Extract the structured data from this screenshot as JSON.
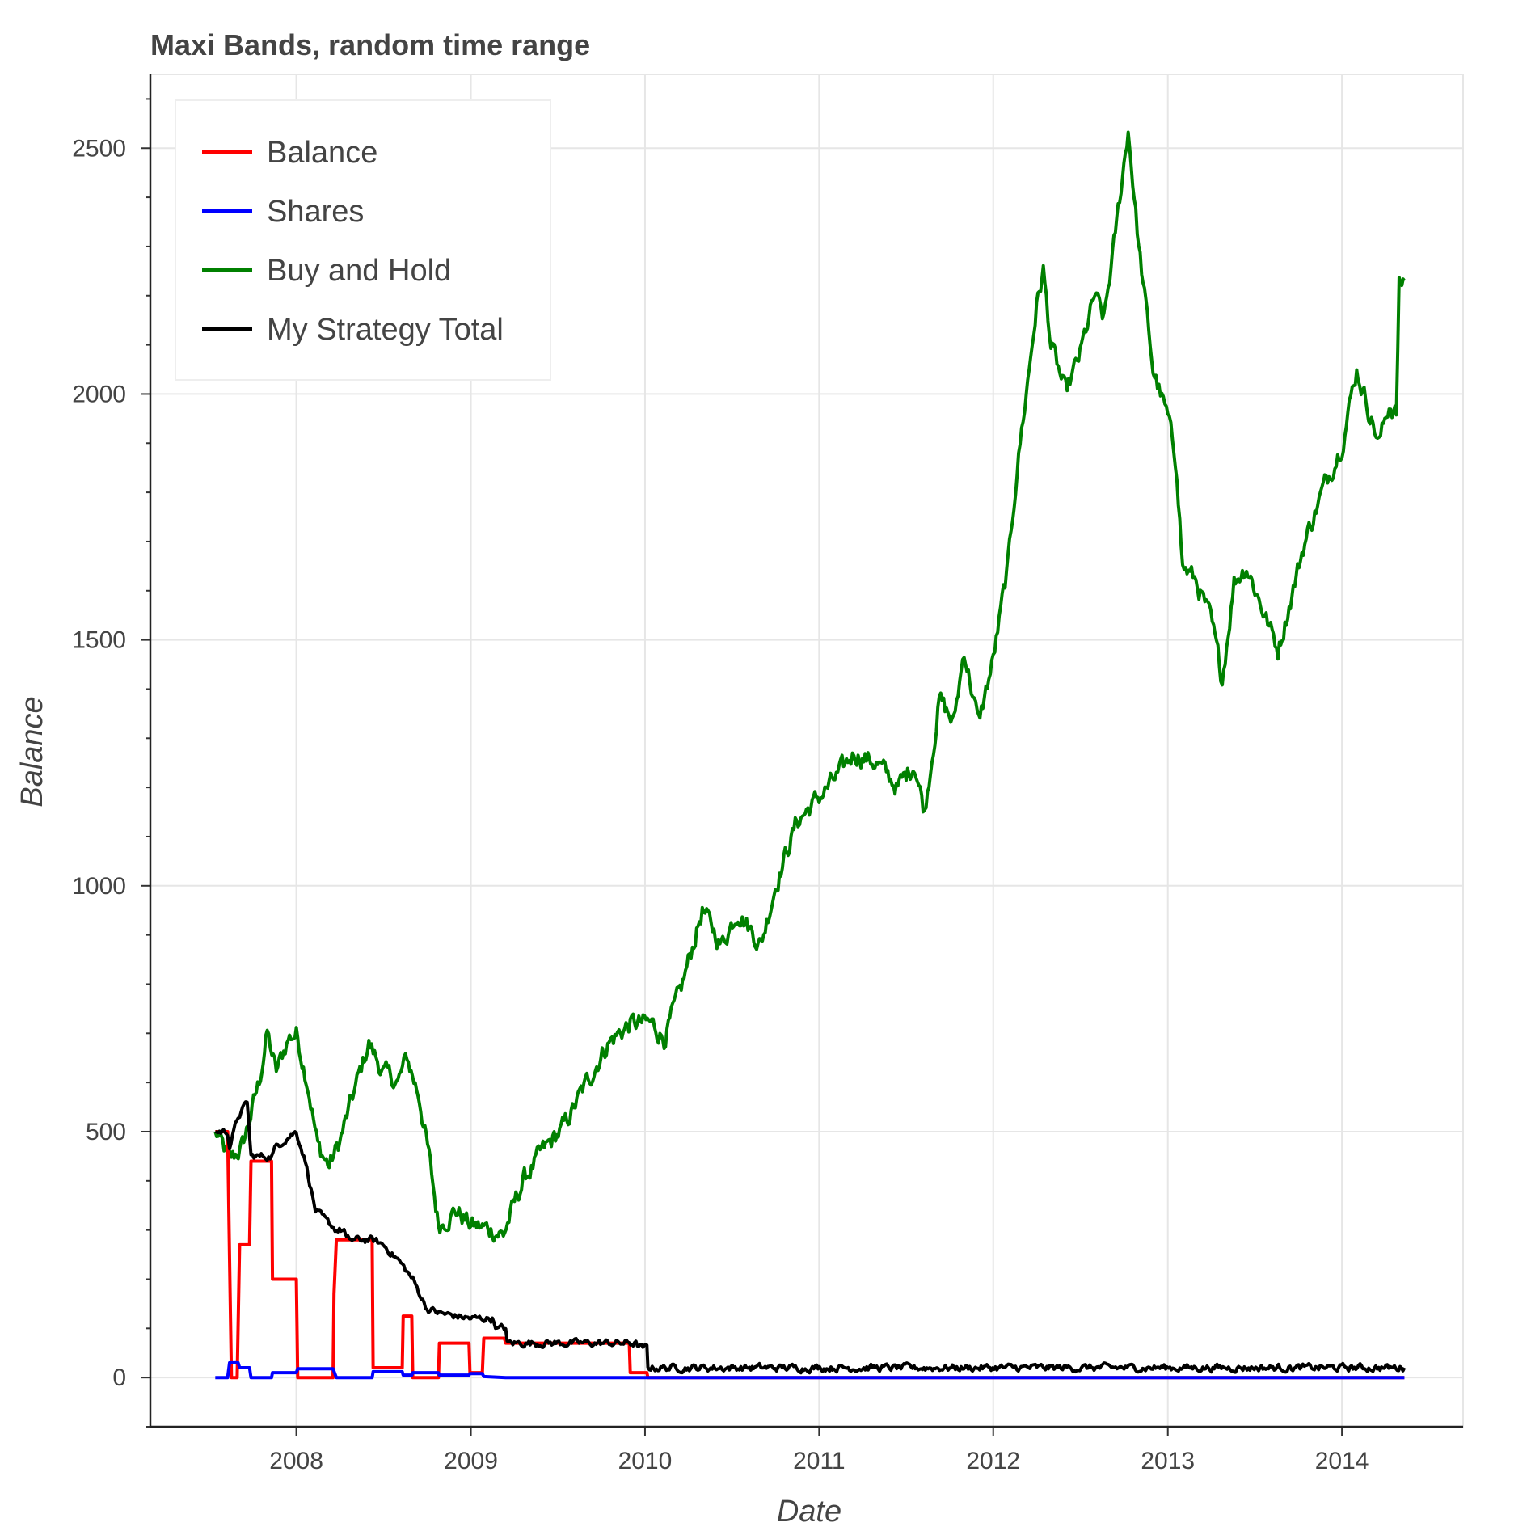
{
  "chart_data": {
    "type": "line",
    "title": "Maxi Bands, random time range",
    "xlabel": "Date",
    "ylabel": "Balance",
    "x_type": "date",
    "xlim": [
      "2007-03-01",
      "2014-09-12"
    ],
    "ylim": [
      -100,
      2650
    ],
    "x_ticks": [
      {
        "date": "2008-01-01",
        "label": "2008"
      },
      {
        "date": "2009-01-01",
        "label": "2009"
      },
      {
        "date": "2010-01-01",
        "label": "2010"
      },
      {
        "date": "2011-01-01",
        "label": "2011"
      },
      {
        "date": "2012-01-01",
        "label": "2012"
      },
      {
        "date": "2013-01-01",
        "label": "2013"
      },
      {
        "date": "2014-01-01",
        "label": "2014"
      }
    ],
    "y_ticks": [
      0,
      500,
      1000,
      1500,
      2000,
      2500
    ],
    "y_minor_step": 100,
    "grid": true,
    "legend_position": "top-left",
    "series": [
      {
        "name": "Balance",
        "color": "#ff0000",
        "step": true,
        "points": [
          [
            "2007-07-15",
            500
          ],
          [
            "2007-08-10",
            500
          ],
          [
            "2007-08-14",
            240
          ],
          [
            "2007-08-18",
            0
          ],
          [
            "2007-08-30",
            0
          ],
          [
            "2007-09-04",
            270
          ],
          [
            "2007-09-25",
            270
          ],
          [
            "2007-09-28",
            440
          ],
          [
            "2007-11-10",
            440
          ],
          [
            "2007-11-12",
            200
          ],
          [
            "2008-01-01",
            200
          ],
          [
            "2008-01-04",
            0
          ],
          [
            "2008-03-18",
            0
          ],
          [
            "2008-03-20",
            170
          ],
          [
            "2008-03-25",
            280
          ],
          [
            "2008-06-08",
            280
          ],
          [
            "2008-06-10",
            20
          ],
          [
            "2008-08-10",
            20
          ],
          [
            "2008-08-12",
            125
          ],
          [
            "2008-08-30",
            125
          ],
          [
            "2008-09-01",
            0
          ],
          [
            "2008-10-25",
            0
          ],
          [
            "2008-10-27",
            70
          ],
          [
            "2008-12-28",
            70
          ],
          [
            "2008-12-30",
            10
          ],
          [
            "2009-01-25",
            10
          ],
          [
            "2009-01-28",
            80
          ],
          [
            "2009-03-12",
            80
          ],
          [
            "2009-03-15",
            70
          ],
          [
            "2009-11-29",
            70
          ],
          [
            "2009-12-01",
            10
          ],
          [
            "2010-01-05",
            10
          ],
          [
            "2010-01-07",
            0
          ],
          [
            "2014-05-12",
            0
          ]
        ]
      },
      {
        "name": "Shares",
        "color": "#0000ff",
        "step": true,
        "points": [
          [
            "2007-07-15",
            0
          ],
          [
            "2007-08-10",
            0
          ],
          [
            "2007-08-14",
            30
          ],
          [
            "2007-09-01",
            30
          ],
          [
            "2007-09-04",
            20
          ],
          [
            "2007-09-25",
            20
          ],
          [
            "2007-09-28",
            0
          ],
          [
            "2007-11-10",
            0
          ],
          [
            "2007-11-12",
            10
          ],
          [
            "2008-01-01",
            10
          ],
          [
            "2008-01-04",
            18
          ],
          [
            "2008-03-18",
            18
          ],
          [
            "2008-03-25",
            0
          ],
          [
            "2008-06-08",
            0
          ],
          [
            "2008-06-10",
            12
          ],
          [
            "2008-08-10",
            12
          ],
          [
            "2008-08-12",
            5
          ],
          [
            "2008-08-30",
            5
          ],
          [
            "2008-09-01",
            10
          ],
          [
            "2008-10-25",
            10
          ],
          [
            "2008-10-27",
            5
          ],
          [
            "2008-12-28",
            5
          ],
          [
            "2008-12-30",
            8
          ],
          [
            "2009-01-25",
            8
          ],
          [
            "2009-01-28",
            2
          ],
          [
            "2009-03-15",
            0
          ],
          [
            "2014-05-12",
            0
          ]
        ]
      },
      {
        "name": "Buy and Hold",
        "color": "#008000",
        "step": false,
        "noise": 35,
        "points": [
          [
            "2007-07-15",
            500
          ],
          [
            "2007-08-15",
            440
          ],
          [
            "2007-09-10",
            470
          ],
          [
            "2007-10-15",
            600
          ],
          [
            "2007-11-01",
            700
          ],
          [
            "2007-11-20",
            620
          ],
          [
            "2007-12-15",
            690
          ],
          [
            "2008-01-01",
            700
          ],
          [
            "2008-01-25",
            600
          ],
          [
            "2008-02-15",
            470
          ],
          [
            "2008-03-10",
            430
          ],
          [
            "2008-04-01",
            480
          ],
          [
            "2008-05-01",
            580
          ],
          [
            "2008-06-01",
            680
          ],
          [
            "2008-07-01",
            620
          ],
          [
            "2008-08-01",
            600
          ],
          [
            "2008-08-20",
            650
          ],
          [
            "2008-09-15",
            570
          ],
          [
            "2008-10-05",
            450
          ],
          [
            "2008-10-25",
            310
          ],
          [
            "2008-12-01",
            340
          ],
          [
            "2009-01-01",
            310
          ],
          [
            "2009-02-15",
            300
          ],
          [
            "2009-03-10",
            290
          ],
          [
            "2009-04-20",
            400
          ],
          [
            "2009-06-01",
            460
          ],
          [
            "2009-07-15",
            510
          ],
          [
            "2009-09-01",
            600
          ],
          [
            "2009-10-15",
            680
          ],
          [
            "2009-12-01",
            720
          ],
          [
            "2010-01-15",
            720
          ],
          [
            "2010-02-10",
            690
          ],
          [
            "2010-03-15",
            780
          ],
          [
            "2010-05-01",
            950
          ],
          [
            "2010-06-10",
            880
          ],
          [
            "2010-07-15",
            950
          ],
          [
            "2010-09-01",
            880
          ],
          [
            "2010-10-01",
            1000
          ],
          [
            "2010-11-15",
            1130
          ],
          [
            "2011-01-01",
            1180
          ],
          [
            "2011-02-15",
            1230
          ],
          [
            "2011-03-15",
            1270
          ],
          [
            "2011-05-01",
            1250
          ],
          [
            "2011-06-15",
            1200
          ],
          [
            "2011-07-20",
            1250
          ],
          [
            "2011-08-10",
            1150
          ],
          [
            "2011-09-10",
            1380
          ],
          [
            "2011-10-10",
            1330
          ],
          [
            "2011-11-01",
            1480
          ],
          [
            "2011-12-01",
            1330
          ],
          [
            "2012-01-01",
            1460
          ],
          [
            "2012-02-01",
            1650
          ],
          [
            "2012-02-20",
            1850
          ],
          [
            "2012-03-10",
            2000
          ],
          [
            "2012-04-01",
            2180
          ],
          [
            "2012-04-15",
            2250
          ],
          [
            "2012-05-01",
            2100
          ],
          [
            "2012-06-01",
            2000
          ],
          [
            "2012-07-01",
            2080
          ],
          [
            "2012-08-01",
            2200
          ],
          [
            "2012-08-20",
            2150
          ],
          [
            "2012-09-10",
            2300
          ],
          [
            "2012-09-25",
            2420
          ],
          [
            "2012-10-10",
            2540
          ],
          [
            "2012-11-01",
            2300
          ],
          [
            "2012-12-01",
            2050
          ],
          [
            "2013-01-01",
            1950
          ],
          [
            "2013-01-20",
            1850
          ],
          [
            "2013-02-01",
            1650
          ],
          [
            "2013-03-01",
            1620
          ],
          [
            "2013-04-01",
            1540
          ],
          [
            "2013-04-25",
            1420
          ],
          [
            "2013-05-20",
            1620
          ],
          [
            "2013-06-15",
            1650
          ],
          [
            "2013-07-20",
            1560
          ],
          [
            "2013-08-20",
            1480
          ],
          [
            "2013-09-15",
            1580
          ],
          [
            "2013-10-15",
            1700
          ],
          [
            "2013-11-20",
            1800
          ],
          [
            "2014-01-01",
            1900
          ],
          [
            "2014-02-01",
            2050
          ],
          [
            "2014-03-01",
            1960
          ],
          [
            "2014-03-20",
            1900
          ],
          [
            "2014-04-10",
            1980
          ],
          [
            "2014-04-25",
            1960
          ],
          [
            "2014-05-01",
            2220
          ],
          [
            "2014-05-12",
            2230
          ]
        ]
      },
      {
        "name": "My Strategy Total",
        "color": "#000000",
        "step": false,
        "noise": 12,
        "points": [
          [
            "2007-07-15",
            500
          ],
          [
            "2007-08-10",
            500
          ],
          [
            "2007-08-14",
            470
          ],
          [
            "2007-09-01",
            530
          ],
          [
            "2007-09-20",
            560
          ],
          [
            "2007-09-28",
            450
          ],
          [
            "2007-11-10",
            450
          ],
          [
            "2007-11-20",
            470
          ],
          [
            "2007-12-15",
            490
          ],
          [
            "2008-01-01",
            500
          ],
          [
            "2008-01-20",
            440
          ],
          [
            "2008-02-10",
            340
          ],
          [
            "2008-03-01",
            320
          ],
          [
            "2008-03-25",
            300
          ],
          [
            "2008-04-10",
            300
          ],
          [
            "2008-04-15",
            280
          ],
          [
            "2008-06-08",
            280
          ],
          [
            "2008-07-01",
            270
          ],
          [
            "2008-08-01",
            240
          ],
          [
            "2008-09-01",
            200
          ],
          [
            "2008-10-01",
            140
          ],
          [
            "2008-11-01",
            130
          ],
          [
            "2009-01-01",
            120
          ],
          [
            "2009-02-15",
            120
          ],
          [
            "2009-02-25",
            100
          ],
          [
            "2009-03-15",
            100
          ],
          [
            "2009-03-18",
            70
          ],
          [
            "2009-11-29",
            70
          ],
          [
            "2009-12-10",
            70
          ],
          [
            "2009-12-25",
            60
          ],
          [
            "2010-01-05",
            60
          ],
          [
            "2010-01-07",
            20
          ],
          [
            "2014-05-12",
            20
          ]
        ]
      }
    ]
  }
}
